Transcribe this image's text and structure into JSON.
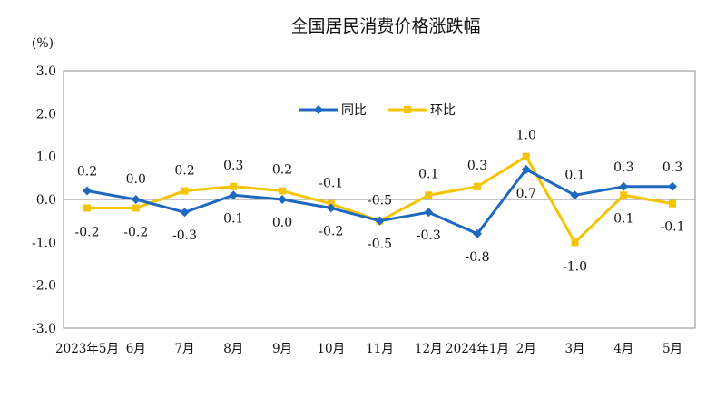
{
  "chart_data": {
    "type": "line",
    "title": "全国居民消费价格涨跌幅",
    "ylabel": "(%)",
    "ylim": [
      -3,
      3
    ],
    "yticks": [
      "3.0",
      "2.0",
      "1.0",
      "0.0",
      "-1.0",
      "-2.0",
      "-3.0"
    ],
    "categories": [
      "2023年5月",
      "6月",
      "7月",
      "8月",
      "9月",
      "10月",
      "11月",
      "12月",
      "2024年1月",
      "2月",
      "3月",
      "4月",
      "5月"
    ],
    "legend_position": "top-center",
    "grid": false,
    "series": [
      {
        "name": "同比",
        "color": "#1f68c0",
        "marker": "diamond",
        "values": [
          0.2,
          0.0,
          -0.3,
          0.1,
          0.0,
          -0.2,
          -0.5,
          -0.3,
          -0.8,
          0.7,
          0.1,
          0.3,
          0.3
        ],
        "labels": [
          "0.2",
          "0.0",
          "-0.3",
          "0.1",
          "0.0",
          "-0.2",
          "-0.5",
          "-0.3",
          "-0.8",
          "0.7",
          "0.1",
          "0.3",
          "0.3"
        ]
      },
      {
        "name": "环比",
        "color": "#f5c400",
        "marker": "square",
        "values": [
          -0.2,
          -0.2,
          0.2,
          0.3,
          0.2,
          -0.1,
          -0.5,
          0.1,
          0.3,
          1.0,
          -1.0,
          0.1,
          -0.1
        ],
        "labels": [
          "-0.2",
          "-0.2",
          "0.2",
          "0.3",
          "0.2",
          "-0.1",
          "-0.5",
          "0.1",
          "0.3",
          "1.0",
          "-1.0",
          "0.1",
          "-0.1"
        ]
      }
    ]
  }
}
